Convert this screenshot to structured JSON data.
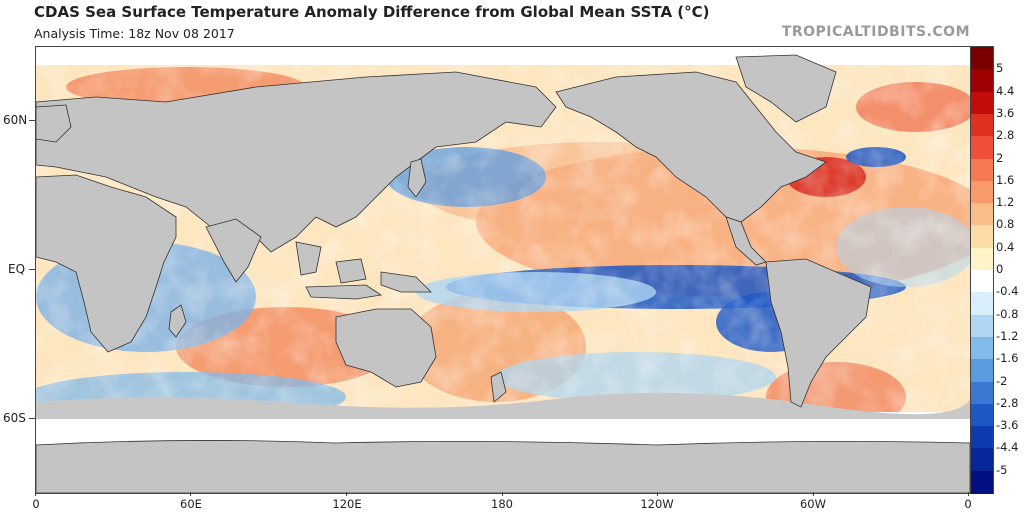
{
  "header": {
    "title": "CDAS Sea Surface Temperature Anomaly Difference from Global Mean SSTA (°C)",
    "subtitle": "Analysis Time: 18z Nov 08 2017",
    "credit": "TROPICALTIDBITS.COM"
  },
  "map": {
    "lat_labels": [
      "60N",
      "EQ",
      "60S"
    ],
    "lon_labels": [
      "0",
      "60E",
      "120E",
      "180",
      "120W",
      "60W",
      "0"
    ]
  },
  "colorbar": {
    "labels": [
      "5",
      "4.4",
      "3.6",
      "2.8",
      "2",
      "1.6",
      "1.2",
      "0.8",
      "0.4",
      "0",
      "-0.4",
      "-0.8",
      "-1.2",
      "-1.6",
      "-2",
      "-2.8",
      "-3.6",
      "-4.4",
      "-5"
    ],
    "colors": [
      "#7a0000",
      "#9e0000",
      "#c40c0c",
      "#e0301e",
      "#f0503a",
      "#f57a52",
      "#f89a6a",
      "#fbbd88",
      "#fddca8",
      "#fff3c8",
      "#ffffff",
      "#d8eefa",
      "#aed6f2",
      "#82baea",
      "#5a9be0",
      "#3a78d4",
      "#1e58c4",
      "#0e3cae",
      "#06269a",
      "#001080"
    ]
  }
}
